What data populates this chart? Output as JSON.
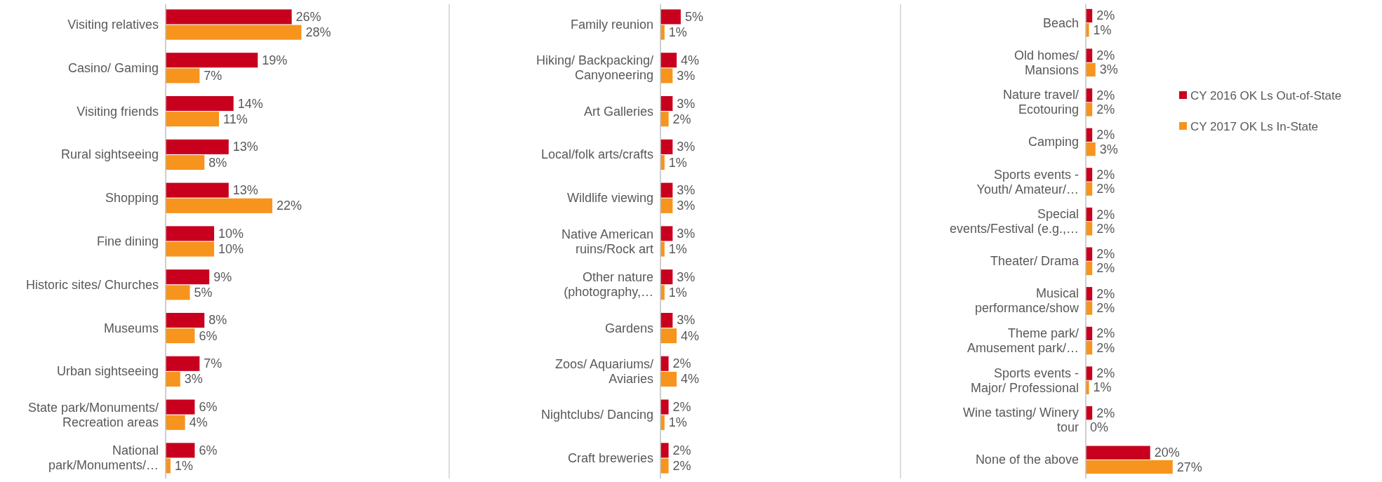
{
  "chart_data": [
    {
      "type": "bar",
      "orientation": "horizontal",
      "categories": [
        "Visiting relatives",
        "Casino/ Gaming",
        "Visiting friends",
        "Rural sightseeing",
        "Shopping",
        "Fine dining",
        "Historic sites/ Churches",
        "Museums",
        "Urban sightseeing",
        "State park/Monuments/\nRecreation areas",
        "National\npark/Monuments/…"
      ],
      "series": [
        {
          "color": "#c8001e",
          "values": [
            26,
            19,
            14,
            13,
            13,
            10,
            9,
            8,
            7,
            6,
            6
          ],
          "value_labels": [
            "26%",
            "19%",
            "14%",
            "13%",
            "13%",
            "10%",
            "9%",
            "8%",
            "7%",
            "6%",
            "6%"
          ]
        },
        {
          "color": "#f7941d",
          "values": [
            28,
            7,
            11,
            8,
            22,
            10,
            5,
            6,
            3,
            4,
            1
          ],
          "value_labels": [
            "28%",
            "7%",
            "11%",
            "8%",
            "22%",
            "10%",
            "5%",
            "6%",
            "3%",
            "4%",
            "1%"
          ]
        }
      ]
    },
    {
      "type": "bar",
      "orientation": "horizontal",
      "categories": [
        "Family reunion",
        "Hiking/ Backpacking/\nCanyoneering",
        "Art Galleries",
        "Local/folk arts/crafts",
        "Wildlife viewing",
        "Native American\nruins/Rock art",
        "Other nature\n(photography,…",
        "Gardens",
        "Zoos/ Aquariums/\nAviaries",
        "Nightclubs/ Dancing",
        "Craft breweries"
      ],
      "series": [
        {
          "color": "#c8001e",
          "values": [
            5,
            4,
            3,
            3,
            3,
            3,
            3,
            3,
            2,
            2,
            2
          ],
          "value_labels": [
            "5%",
            "4%",
            "3%",
            "3%",
            "3%",
            "3%",
            "3%",
            "3%",
            "2%",
            "2%",
            "2%"
          ]
        },
        {
          "color": "#f7941d",
          "values": [
            1,
            3,
            2,
            1,
            3,
            1,
            1,
            4,
            4,
            1,
            2
          ],
          "value_labels": [
            "1%",
            "3%",
            "2%",
            "1%",
            "3%",
            "1%",
            "1%",
            "4%",
            "4%",
            "1%",
            "2%"
          ]
        }
      ]
    },
    {
      "type": "bar",
      "orientation": "horizontal",
      "legend": "right",
      "categories": [
        "Beach",
        "Old homes/\nMansions",
        "Nature travel/\nEcotouring",
        "Camping",
        "Sports events -\nYouth/ Amateur/…",
        "Special\nevents/Festival (e.g.,…",
        "Theater/ Drama",
        "Musical\nperformance/show",
        "Theme park/\nAmusement park/…",
        "Sports events -\nMajor/ Professional",
        "Wine tasting/ Winery\ntour",
        "None of the above"
      ],
      "series": [
        {
          "name": "CY 2016 OK Ls Out-of-State",
          "color": "#c8001e",
          "values": [
            2,
            2,
            2,
            2,
            2,
            2,
            2,
            2,
            2,
            2,
            2,
            20
          ],
          "value_labels": [
            "2%",
            "2%",
            "2%",
            "2%",
            "2%",
            "2%",
            "2%",
            "2%",
            "2%",
            "2%",
            "2%",
            "20%"
          ]
        },
        {
          "name": "CY 2017 OK Ls In-State",
          "color": "#f7941d",
          "values": [
            1,
            3,
            2,
            3,
            2,
            2,
            2,
            2,
            2,
            1,
            0,
            27
          ],
          "value_labels": [
            "1%",
            "3%",
            "2%",
            "3%",
            "2%",
            "2%",
            "2%",
            "2%",
            "2%",
            "1%",
            "0%",
            "27%"
          ]
        }
      ]
    }
  ]
}
